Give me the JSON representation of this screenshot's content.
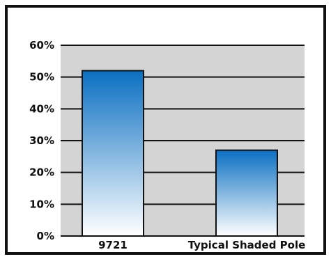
{
  "chart_data": {
    "type": "bar",
    "categories": [
      "9721",
      "Typical Shaded Pole"
    ],
    "values": [
      52,
      27
    ],
    "ylim": [
      0,
      60
    ],
    "yticks": [
      0,
      10,
      20,
      30,
      40,
      50,
      60
    ],
    "ytick_suffix": "%",
    "ytick_labels": [
      "0%",
      "10%",
      "20%",
      "30%",
      "40%",
      "50%",
      "60%"
    ],
    "title": "",
    "xlabel": "",
    "ylabel": "",
    "grid": true,
    "legend": "none",
    "colors": {
      "plot_background": "#d4d4d4",
      "frame": "#111111",
      "gridline": "#111111",
      "bar_top": "#0a6fc2",
      "bar_bottom": "#ffffff",
      "bar_outline": "#111111"
    }
  }
}
